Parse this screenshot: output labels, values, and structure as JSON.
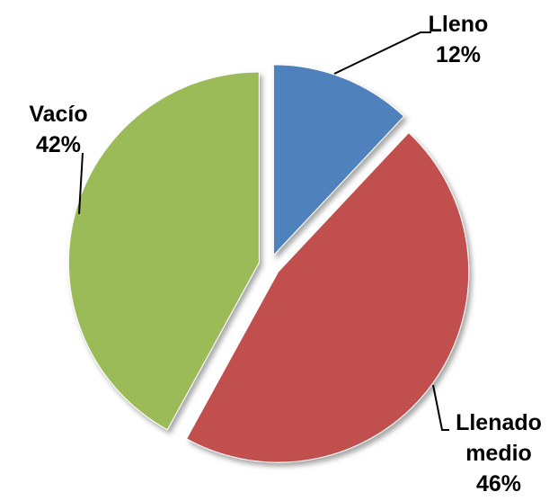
{
  "chart_data": {
    "type": "pie",
    "categories": [
      "Lleno",
      "Llenado medio",
      "Vacío"
    ],
    "values": [
      12,
      46,
      42
    ],
    "value_labels": [
      "12%",
      "46%",
      "42%"
    ],
    "colors": [
      "#4f81bd",
      "#c0504d",
      "#9bbb59"
    ]
  }
}
